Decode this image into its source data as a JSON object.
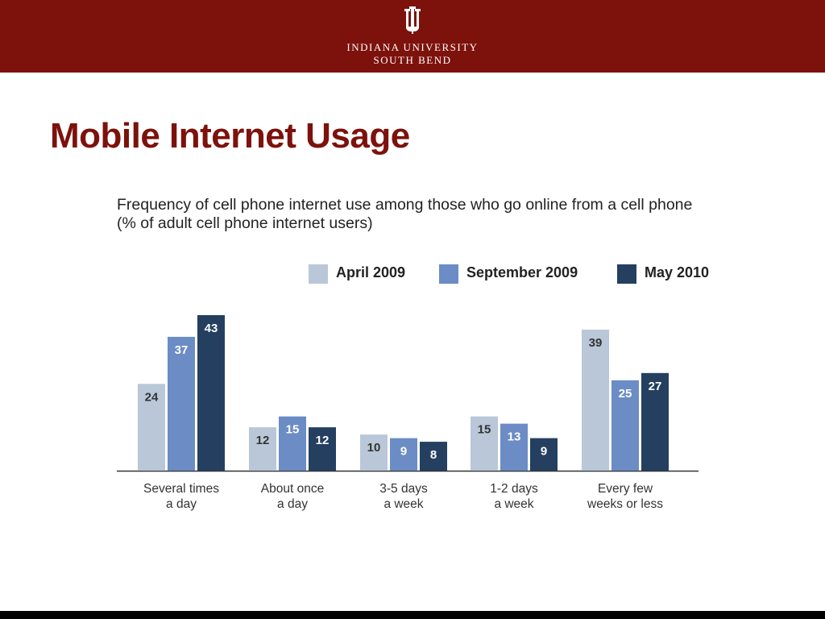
{
  "header": {
    "university_line1": "INDIANA UNIVERSITY",
    "university_line2": "SOUTH BEND",
    "logo_icon": "trident-logo-icon"
  },
  "slide": {
    "title": "Mobile Internet Usage"
  },
  "chart_data": {
    "type": "bar",
    "title": "Frequency of cell phone internet use among those who go online from a cell phone (% of adult cell phone internet users)",
    "categories": [
      [
        "Several times",
        "a day"
      ],
      [
        "About once",
        "a day"
      ],
      [
        "3-5 days",
        "a week"
      ],
      [
        "1-2 days",
        "a week"
      ],
      [
        "Every few",
        "weeks or less"
      ]
    ],
    "series": [
      {
        "name": "April 2009",
        "color": "#b9c7d8",
        "values": [
          24,
          12,
          10,
          15,
          39
        ]
      },
      {
        "name": "September 2009",
        "color": "#6b8cc4",
        "values": [
          37,
          15,
          9,
          13,
          25
        ]
      },
      {
        "name": "May 2010",
        "color": "#243f60",
        "values": [
          43,
          12,
          8,
          9,
          27
        ]
      }
    ],
    "ylim": [
      0,
      43
    ],
    "legend_position": "top-right",
    "grid": false,
    "data_labels": true
  }
}
